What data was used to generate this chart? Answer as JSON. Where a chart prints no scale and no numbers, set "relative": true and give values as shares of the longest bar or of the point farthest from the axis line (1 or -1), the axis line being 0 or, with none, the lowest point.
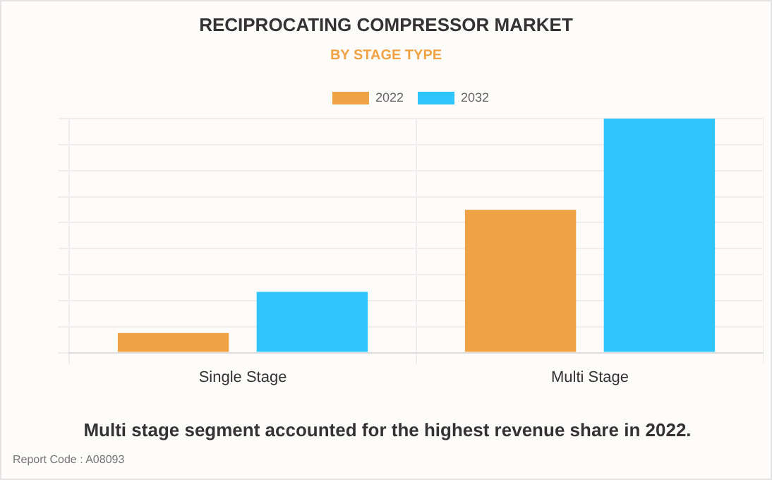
{
  "chart_data": {
    "type": "bar",
    "title": "RECIPROCATING COMPRESSOR MARKET",
    "subtitle": "BY STAGE TYPE",
    "categories": [
      "Single Stage",
      "Multi Stage"
    ],
    "series": [
      {
        "name": "2022",
        "color": "#f0a345",
        "values": [
          0.084,
          0.61
        ]
      },
      {
        "name": "2032",
        "color": "#31c5fd",
        "values": [
          0.26,
          1
        ]
      }
    ],
    "relative": true,
    "grid": true,
    "legend": "top",
    "annotations": [
      "Multi stage segment accounted for the highest revenue share in 2022.",
      "Report Code : A08093"
    ]
  }
}
